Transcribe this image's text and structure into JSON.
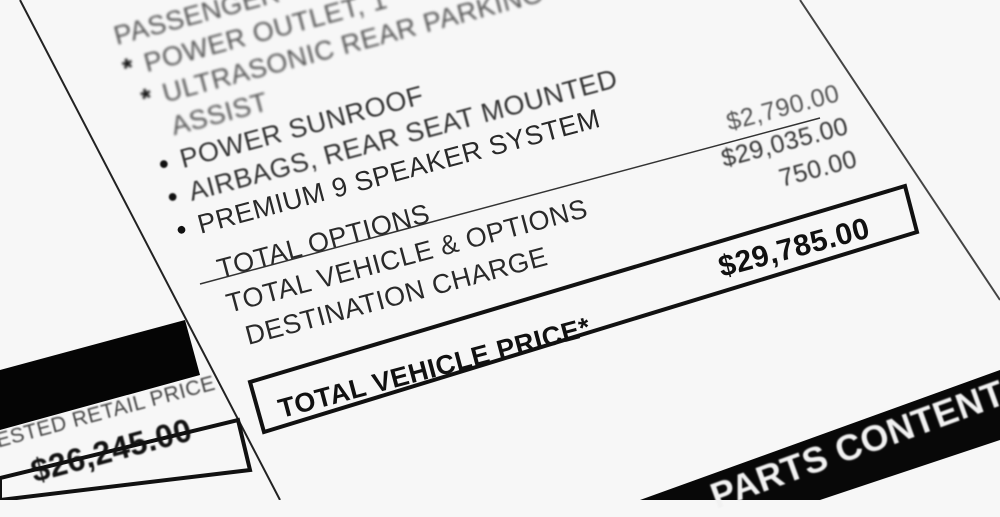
{
  "sticker": {
    "options": [
      {
        "marker": "",
        "label": "PASSENGER"
      },
      {
        "marker": "*",
        "label": "POWER OUTLET, 1"
      },
      {
        "marker": "*",
        "label": "ULTRASONIC REAR PARKING"
      },
      {
        "marker": "",
        "label": "ASSIST"
      },
      {
        "marker": "•",
        "label": "POWER SUNROOF"
      },
      {
        "marker": "•",
        "label": "AIRBAGS, REAR SEAT MOUNTED"
      },
      {
        "marker": "•",
        "label": "PREMIUM 9 SPEAKER SYSTEM"
      }
    ],
    "totals": {
      "total_options_label": "TOTAL OPTIONS",
      "total_options_value": "$2,790.00",
      "total_vehicle_options_label": "TOTAL VEHICLE & OPTIONS",
      "total_vehicle_options_value": "$29,035.00",
      "destination_label": "DESTINATION CHARGE",
      "destination_value": "750.00",
      "total_price_label": "TOTAL VEHICLE PRICE*",
      "total_price_value": "$29,785.00"
    },
    "left_panel": {
      "msrp_label": "SUGGESTED RETAIL PRICE",
      "msrp_value": "$26,245.00"
    },
    "banner": "PARTS CONTENT"
  },
  "colors": {
    "paper": "#f7f7f7",
    "ink": "#111111"
  }
}
